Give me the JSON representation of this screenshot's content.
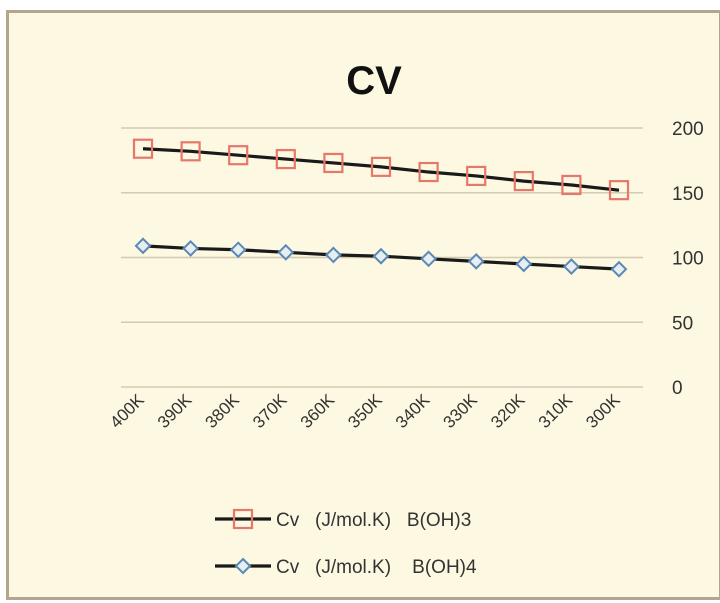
{
  "chart_data": {
    "type": "line",
    "title": "CV",
    "xlabel": "",
    "ylabel": "",
    "categories": [
      "400K",
      "390K",
      "380K",
      "370K",
      "360K",
      "350K",
      "340K",
      "330K",
      "320K",
      "310K",
      "300K"
    ],
    "ylim": [
      0,
      200
    ],
    "yticks": [
      0,
      50,
      100,
      150,
      200
    ],
    "y_axis_side": "right",
    "grid": true,
    "legend_position": "bottom",
    "series": [
      {
        "name": "Cv   (J/mol.K)   B(OH)3",
        "values": [
          184,
          182,
          179,
          176,
          173,
          170,
          166,
          163,
          159,
          156,
          152
        ],
        "line_color": "#1a1a1a",
        "marker": "square",
        "marker_color": "#e8776a"
      },
      {
        "name": "Cv   (J/mol.K)    B(OH)4",
        "values": [
          109,
          107,
          106,
          104,
          102,
          101,
          99,
          97,
          95,
          93,
          91
        ],
        "line_color": "#1a1a1a",
        "marker": "diamond",
        "marker_color": "#5b88b5"
      }
    ]
  }
}
